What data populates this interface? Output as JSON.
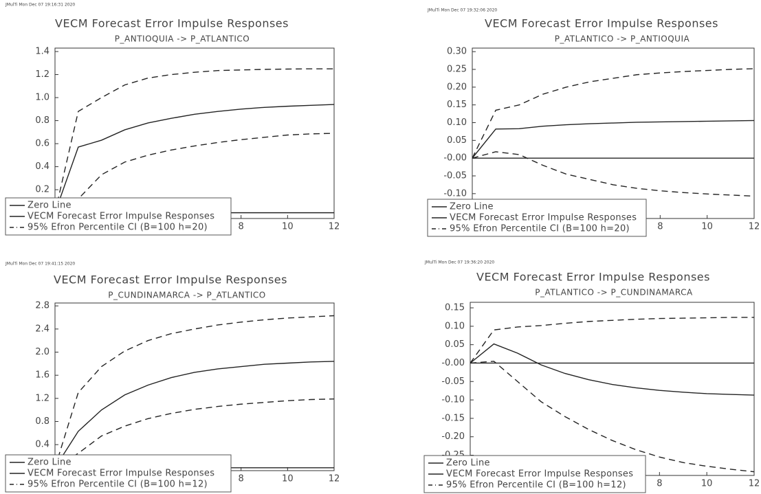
{
  "chart_data": [
    {
      "type": "line",
      "header": "JMulTi Mon Dec 07 19:16:31 2020",
      "title": "VECM Forecast Error Impulse Responses",
      "subtitle": "P_ANTIOQUIA -> P_ATLANTICO",
      "x": [
        0,
        1,
        2,
        3,
        4,
        5,
        6,
        7,
        8,
        9,
        10,
        11,
        12
      ],
      "xlim": [
        0,
        12
      ],
      "xticks": [
        8,
        10,
        12
      ],
      "ylim": [
        -0.05,
        1.43
      ],
      "yticks": [
        0.2,
        0.4,
        0.6,
        0.8,
        {
          "value": 1.0,
          "label": "1.0"
        },
        1.2,
        1.4
      ],
      "series": [
        {
          "name": "Zero Line",
          "color": "#222",
          "line_style": "solid",
          "values": [
            0,
            0,
            0,
            0,
            0,
            0,
            0,
            0,
            0,
            0,
            0,
            0,
            0
          ]
        },
        {
          "name": "VECM Forecast Error Impulse Responses",
          "color": "#222",
          "line_style": "solid",
          "values": [
            0,
            0.57,
            0.63,
            0.72,
            0.78,
            0.82,
            0.855,
            0.88,
            0.9,
            0.915,
            0.925,
            0.933,
            0.94
          ]
        },
        {
          "name": "95% Efron Percentile CI (B=100 h=20)",
          "color": "#222",
          "line_style": "dashed",
          "lower": [
            0,
            0.12,
            0.33,
            0.44,
            0.5,
            0.545,
            0.58,
            0.61,
            0.635,
            0.655,
            0.675,
            0.685,
            0.69
          ],
          "upper": [
            0,
            0.88,
            1.0,
            1.11,
            1.17,
            1.2,
            1.22,
            1.235,
            1.24,
            1.245,
            1.248,
            1.25,
            1.25
          ]
        }
      ]
    },
    {
      "type": "line",
      "header": "JMulTi Mon Dec 07 19:32:06 2020",
      "title": "VECM Forecast Error Impulse Responses",
      "subtitle": "P_ATLANTICO -> P_ANTIOQUIA",
      "x": [
        0,
        1,
        2,
        3,
        4,
        5,
        6,
        7,
        8,
        9,
        10,
        11,
        12
      ],
      "xlim": [
        0,
        12
      ],
      "xticks": [
        8,
        10,
        12
      ],
      "ylim": [
        -0.17,
        0.31
      ],
      "yticks": [
        {
          "value": 0.3,
          "label": "0.30"
        },
        0.25,
        {
          "value": 0.2,
          "label": "0.20"
        },
        0.15,
        {
          "value": 0.1,
          "label": "0.10"
        },
        0.05,
        {
          "value": 0,
          "label": "-0.00"
        },
        -0.05,
        {
          "value": -0.1,
          "label": "-0.10"
        }
      ],
      "series": [
        {
          "name": "Zero Line",
          "color": "#222",
          "line_style": "solid",
          "values": [
            0,
            0,
            0,
            0,
            0,
            0,
            0,
            0,
            0,
            0,
            0,
            0,
            0
          ]
        },
        {
          "name": "VECM Forecast Error Impulse Responses",
          "color": "#222",
          "line_style": "solid",
          "values": [
            0,
            0.082,
            0.083,
            0.09,
            0.094,
            0.097,
            0.099,
            0.101,
            0.102,
            0.103,
            0.104,
            0.105,
            0.106
          ]
        },
        {
          "name": "95% Efron Percentile CI (B=100 h=20)",
          "color": "#222",
          "line_style": "dashed",
          "lower": [
            0,
            0.018,
            0.01,
            -0.02,
            -0.045,
            -0.06,
            -0.075,
            -0.085,
            -0.092,
            -0.097,
            -0.101,
            -0.104,
            -0.107
          ],
          "upper": [
            0,
            0.135,
            0.15,
            0.18,
            0.2,
            0.215,
            0.225,
            0.235,
            0.24,
            0.244,
            0.247,
            0.25,
            0.252
          ]
        }
      ]
    },
    {
      "type": "line",
      "header": "JMulTi Mon Dec 07 19:41:15 2020",
      "title": "VECM Forecast Error Impulse Responses",
      "subtitle": "P_CUNDINAMARCA -> P_ATLANTICO",
      "x": [
        0,
        1,
        2,
        3,
        4,
        5,
        6,
        7,
        8,
        9,
        10,
        11,
        12
      ],
      "xlim": [
        0,
        12
      ],
      "xticks": [
        8,
        10,
        12
      ],
      "ylim": [
        -0.05,
        2.85
      ],
      "yticks": [
        0.4,
        0.8,
        1.2,
        1.6,
        {
          "value": 2.0,
          "label": "2.0"
        },
        2.4,
        2.8
      ],
      "series": [
        {
          "name": "Zero Line",
          "color": "#222",
          "line_style": "solid",
          "values": [
            0,
            0,
            0,
            0,
            0,
            0,
            0,
            0,
            0,
            0,
            0,
            0,
            0
          ]
        },
        {
          "name": "VECM Forecast Error Impulse Responses",
          "color": "#222",
          "line_style": "solid",
          "values": [
            0,
            0.63,
            1.0,
            1.26,
            1.43,
            1.56,
            1.65,
            1.71,
            1.75,
            1.79,
            1.81,
            1.83,
            1.84
          ]
        },
        {
          "name": "95% Efron Percentile CI (B=100 h=12)",
          "color": "#222",
          "line_style": "dashed",
          "lower": [
            0,
            0.25,
            0.55,
            0.72,
            0.85,
            0.94,
            1.01,
            1.06,
            1.1,
            1.13,
            1.16,
            1.18,
            1.19
          ],
          "upper": [
            0,
            1.3,
            1.75,
            2.02,
            2.2,
            2.32,
            2.4,
            2.47,
            2.52,
            2.56,
            2.59,
            2.61,
            2.63
          ]
        }
      ]
    },
    {
      "type": "line",
      "header": "JMulTi Mon Dec 07 19:36:20 2020",
      "title": "VECM Forecast Error Impulse Responses",
      "subtitle": "P_ATLANTICO -> P_CUNDINAMARCA",
      "x": [
        0,
        1,
        2,
        3,
        4,
        5,
        6,
        7,
        8,
        9,
        10,
        11,
        12
      ],
      "xlim": [
        0,
        12
      ],
      "xticks": [
        8,
        10,
        12
      ],
      "ylim": [
        -0.305,
        0.165
      ],
      "yticks": [
        0.15,
        {
          "value": 0.1,
          "label": "0.10"
        },
        0.05,
        {
          "value": 0,
          "label": "-0.00"
        },
        -0.05,
        {
          "value": -0.1,
          "label": "-0.10"
        },
        -0.15,
        {
          "value": -0.2,
          "label": "-0.20"
        },
        -0.25
      ],
      "series": [
        {
          "name": "Zero Line",
          "color": "#222",
          "line_style": "solid",
          "values": [
            0,
            0,
            0,
            0,
            0,
            0,
            0,
            0,
            0,
            0,
            0,
            0,
            0
          ]
        },
        {
          "name": "VECM Forecast Error Impulse Responses",
          "color": "#222",
          "line_style": "solid",
          "values": [
            0,
            0.052,
            0.027,
            -0.005,
            -0.028,
            -0.045,
            -0.058,
            -0.067,
            -0.074,
            -0.079,
            -0.083,
            -0.085,
            -0.087
          ]
        },
        {
          "name": "95% Efron Percentile CI (B=100 h=12)",
          "color": "#222",
          "line_style": "dashed",
          "lower": [
            0,
            0.005,
            -0.05,
            -0.105,
            -0.145,
            -0.18,
            -0.21,
            -0.235,
            -0.255,
            -0.27,
            -0.28,
            -0.288,
            -0.295
          ],
          "upper": [
            0,
            0.09,
            0.098,
            0.102,
            0.108,
            0.113,
            0.116,
            0.119,
            0.121,
            0.122,
            0.123,
            0.124,
            0.124
          ]
        }
      ]
    }
  ]
}
